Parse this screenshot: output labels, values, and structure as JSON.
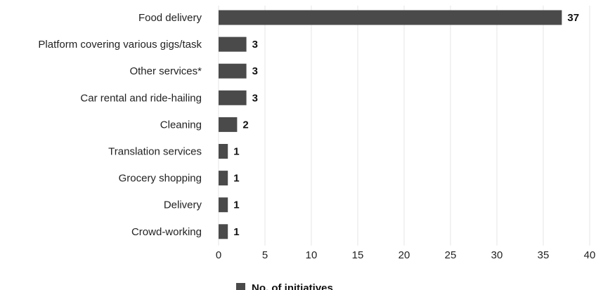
{
  "chart_data": {
    "type": "bar",
    "orientation": "horizontal",
    "categories": [
      "Food delivery",
      "Platform covering various gigs/task",
      "Other services*",
      "Car rental and ride-hailing",
      "Cleaning",
      "Translation services",
      "Grocery shopping",
      "Delivery",
      "Crowd-working"
    ],
    "series": [
      {
        "name": "No. of initiatives",
        "values": [
          37,
          3,
          3,
          3,
          2,
          1,
          1,
          1,
          1
        ],
        "color": "#4a4a4a"
      }
    ],
    "xlim": [
      0,
      40
    ],
    "xticks": [
      0,
      5,
      10,
      15,
      20,
      25,
      30,
      35,
      40
    ],
    "grid": true,
    "legend_position": "bottom-center",
    "title": "",
    "xlabel": "",
    "ylabel": ""
  },
  "colors": {
    "bar": "#4a4a4a",
    "grid": "#e6e6e6",
    "text": "#222222"
  }
}
